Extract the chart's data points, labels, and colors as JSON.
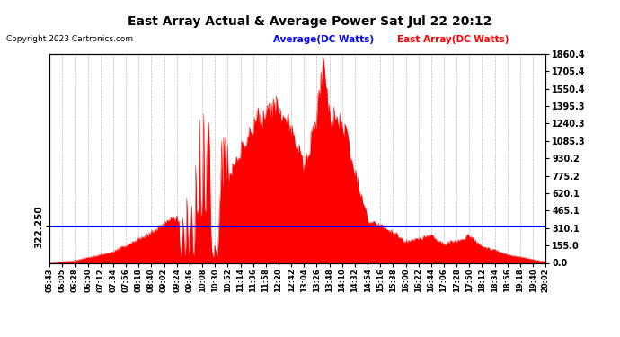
{
  "title": "East Array Actual & Average Power Sat Jul 22 20:12",
  "copyright": "Copyright 2023 Cartronics.com",
  "legend_avg": "Average(DC Watts)",
  "legend_east": "East Array(DC Watts)",
  "avg_value": 322.25,
  "y_right_ticks": [
    0.0,
    155.0,
    310.1,
    465.1,
    620.1,
    775.2,
    930.2,
    1085.3,
    1240.3,
    1395.3,
    1550.4,
    1705.4,
    1860.4
  ],
  "y_left_label": "322.250",
  "y_min": 0.0,
  "y_max": 1860.4,
  "bg_color": "#ffffff",
  "plot_bg_color": "#ffffff",
  "grid_color": "#aaaaaa",
  "fill_color": "#ff0000",
  "line_color": "#ff0000",
  "avg_line_color": "#0000ff",
  "title_color": "#000000",
  "copyright_color": "#000000",
  "legend_avg_color": "#0000ff",
  "legend_east_color": "#ff0000",
  "x_tick_labels": [
    "05:43",
    "06:05",
    "06:28",
    "06:50",
    "07:12",
    "07:34",
    "07:56",
    "08:18",
    "08:40",
    "09:02",
    "09:24",
    "09:46",
    "10:08",
    "10:30",
    "10:52",
    "11:14",
    "11:36",
    "11:58",
    "12:20",
    "12:42",
    "13:04",
    "13:26",
    "13:48",
    "14:10",
    "14:32",
    "14:54",
    "15:16",
    "15:38",
    "16:00",
    "16:22",
    "16:44",
    "17:06",
    "17:28",
    "17:50",
    "18:12",
    "18:34",
    "18:56",
    "19:18",
    "19:40",
    "20:02"
  ]
}
